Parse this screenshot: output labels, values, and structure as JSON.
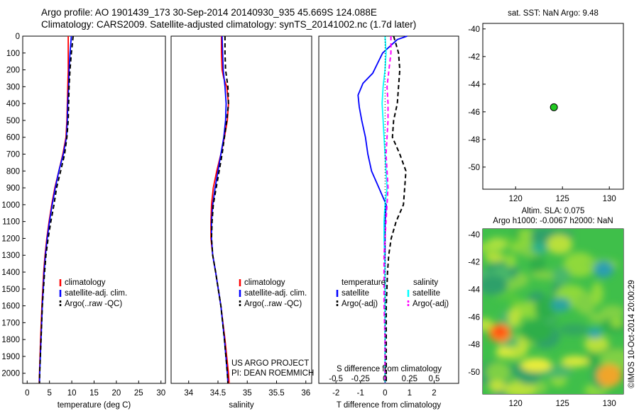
{
  "header": {
    "title_line1": "Argo profile: AO 1901439_173 30-Sep-2014 20140930_935 45.669S 124.088E",
    "title_line2": "Climatology: CARS2009. Satellite-adjusted climatology: synTS_20141002.nc (1.7d later)"
  },
  "credits": {
    "project": "US ARGO PROJECT",
    "pi": "PI: DEAN ROEMMICH",
    "imos": "©IMOS 10-Oct-2014 20:00:29"
  },
  "colors": {
    "climatology": "#ff0000",
    "satellite": "#0000ff",
    "argo": "#000000",
    "salinity_satellite": "#00ffff",
    "salinity_argo": "#ff00ff",
    "argo_dot": "#22c922"
  },
  "chart_data": [
    {
      "id": "temperature",
      "type": "line",
      "xlabel": "temperature (deg C)",
      "ylabel": "",
      "xlim": [
        -1,
        31
      ],
      "ylim": [
        2060,
        0
      ],
      "xticks": [
        0,
        5,
        10,
        15,
        20,
        25,
        30
      ],
      "yticks": [
        0,
        100,
        200,
        300,
        400,
        500,
        600,
        700,
        800,
        900,
        1000,
        1100,
        1200,
        1300,
        1400,
        1500,
        1600,
        1700,
        1800,
        1900,
        2000
      ],
      "legend": [
        "climatology",
        "satellite-adj. clim.",
        "Argo(..raw -QC)"
      ],
      "series": [
        {
          "name": "climatology",
          "style": "solid",
          "color": "#ff0000",
          "depth": [
            0,
            100,
            200,
            300,
            400,
            500,
            600,
            700,
            800,
            900,
            1000,
            1100,
            1200,
            1300,
            1400,
            1600,
            1800,
            2000,
            2060
          ],
          "values": [
            9.2,
            9.2,
            9.2,
            9.1,
            9.0,
            8.9,
            8.7,
            8.0,
            7.1,
            6.2,
            5.5,
            4.9,
            4.4,
            4.0,
            3.7,
            3.3,
            3.0,
            2.75,
            2.7
          ]
        },
        {
          "name": "satellite-adj. clim.",
          "style": "solid",
          "color": "#0000ff",
          "depth": [
            0,
            100,
            200,
            300,
            400,
            500,
            600,
            700,
            800,
            900,
            1000,
            1100,
            1200,
            1300,
            1400,
            1600,
            1800,
            2000,
            2060
          ],
          "values": [
            9.9,
            9.6,
            9.4,
            9.3,
            9.1,
            9.0,
            8.8,
            8.1,
            7.1,
            6.3,
            5.6,
            5.0,
            4.5,
            4.1,
            3.8,
            3.4,
            3.1,
            2.8,
            2.75
          ]
        },
        {
          "name": "Argo(..raw -QC)",
          "style": "dashed",
          "color": "#000000",
          "depth": [
            0,
            100,
            200,
            300,
            400,
            500,
            600,
            700,
            800,
            900,
            1000,
            1100,
            1200,
            1300,
            1400,
            1600,
            1800,
            2000,
            2060
          ],
          "values": [
            10.3,
            9.9,
            9.6,
            9.4,
            9.3,
            9.2,
            8.9,
            8.4,
            7.5,
            6.6,
            6.0,
            5.3,
            4.7,
            4.2,
            3.9,
            3.4,
            3.1,
            2.8,
            2.75
          ]
        }
      ]
    },
    {
      "id": "salinity",
      "type": "line",
      "xlabel": "salinity",
      "ylabel": "",
      "xlim": [
        33.7,
        36.1
      ],
      "ylim": [
        2060,
        0
      ],
      "xticks": [
        34,
        34.5,
        35,
        35.5,
        36
      ],
      "legend": [
        "climatology",
        "satellite-adj. clim.",
        "Argo(..raw -QC)"
      ],
      "series": [
        {
          "name": "climatology",
          "style": "solid",
          "color": "#ff0000",
          "depth": [
            0,
            100,
            200,
            250,
            300,
            400,
            500,
            600,
            700,
            800,
            900,
            1000,
            1100,
            1200,
            1300,
            1400,
            1600,
            1800,
            2000,
            2060
          ],
          "values": [
            34.56,
            34.56,
            34.57,
            34.6,
            34.65,
            34.68,
            34.66,
            34.61,
            34.55,
            34.48,
            34.42,
            34.39,
            34.38,
            34.38,
            34.41,
            34.46,
            34.55,
            34.62,
            34.68,
            34.69
          ]
        },
        {
          "name": "satellite-adj. clim.",
          "style": "solid",
          "color": "#0000ff",
          "depth": [
            0,
            100,
            200,
            300,
            400,
            500,
            600,
            700,
            800,
            900,
            1000,
            1100,
            1200,
            1300,
            1400,
            1600,
            1800,
            2000,
            2060
          ],
          "values": [
            34.57,
            34.58,
            34.59,
            34.62,
            34.64,
            34.63,
            34.6,
            34.55,
            34.5,
            34.45,
            34.41,
            34.39,
            34.39,
            34.41,
            34.46,
            34.55,
            34.61,
            34.66,
            34.67
          ]
        },
        {
          "name": "Argo(..raw -QC)",
          "style": "dashed",
          "color": "#000000",
          "depth": [
            0,
            100,
            200,
            300,
            400,
            500,
            600,
            700,
            800,
            900,
            1000,
            1100,
            1200,
            1300,
            1400,
            1600,
            1800,
            2000,
            2060
          ],
          "values": [
            34.62,
            34.62,
            34.63,
            34.67,
            34.68,
            34.65,
            34.61,
            34.57,
            34.52,
            34.47,
            34.42,
            34.4,
            34.39,
            34.41,
            34.46,
            34.55,
            34.61,
            34.66,
            34.67
          ]
        }
      ]
    },
    {
      "id": "difference",
      "type": "line",
      "xlabel": "T difference from climatology",
      "xlabel_top": "S difference from climatology",
      "ylabel": "",
      "xlim": [
        -2.7,
        3.0
      ],
      "ylim": [
        2060,
        0
      ],
      "xticks": [
        -2,
        -1,
        0,
        1,
        2
      ],
      "xticks_s": [
        -0.5,
        -0.25,
        0,
        0.25,
        0.5
      ],
      "legend_t_title": "temperature",
      "legend_s_title": "salinity",
      "legend": [
        "satellite",
        "Argo(-adj)",
        "satellite",
        "Argo(-adj)"
      ],
      "series": [
        {
          "name": "satellite",
          "variable": "temperature",
          "style": "solid",
          "color": "#0000ff",
          "depth": [
            0,
            20,
            60,
            100,
            160,
            220,
            280,
            350,
            420,
            500,
            600,
            700,
            800,
            900,
            1000,
            1100,
            1200,
            1300,
            1400,
            1600,
            1800,
            2000,
            2060
          ],
          "values": [
            0.9,
            0.5,
            0.2,
            -0.1,
            -0.3,
            -0.5,
            -0.9,
            -1.1,
            -1.05,
            -0.95,
            -0.8,
            -0.7,
            -0.55,
            -0.25,
            0.05,
            0.0,
            0.0,
            0.0,
            0.0,
            0.0,
            0.0,
            0.0,
            0.0
          ]
        },
        {
          "name": "Argo(-adj)",
          "variable": "temperature",
          "style": "dashed",
          "color": "#000000",
          "depth": [
            0,
            50,
            100,
            200,
            300,
            400,
            500,
            600,
            700,
            800,
            900,
            1000,
            1100,
            1200,
            1300,
            1400,
            1600,
            1800,
            2000,
            2060
          ],
          "values": [
            0.35,
            0.45,
            0.55,
            0.6,
            0.55,
            0.5,
            0.35,
            0.3,
            0.6,
            0.85,
            0.8,
            0.75,
            0.45,
            0.25,
            0.15,
            0.1,
            0.05,
            0.05,
            0.05,
            0.05
          ]
        },
        {
          "name": "satellite",
          "variable": "salinity",
          "style": "solid",
          "color": "#00ffff",
          "depth": [
            0,
            100,
            200,
            300,
            400,
            500,
            600,
            700,
            800,
            900,
            1000,
            1100,
            1200,
            1400,
            1600,
            1800,
            2000,
            2060
          ],
          "values": [
            0.0,
            0.01,
            0.0,
            -0.02,
            -0.03,
            -0.02,
            -0.01,
            0.0,
            0.01,
            0.02,
            0.0,
            -0.01,
            -0.01,
            0.0,
            0.0,
            0.0,
            0.0,
            0.0
          ]
        },
        {
          "name": "Argo(-adj)",
          "variable": "salinity",
          "style": "dashed",
          "color": "#ff00ff",
          "depth": [
            0,
            100,
            200,
            300,
            400,
            500,
            600,
            700,
            800,
            900,
            1000,
            1100,
            1200,
            1300,
            1400,
            1600,
            1800,
            2000,
            2060
          ],
          "values": [
            0.06,
            0.06,
            0.04,
            0.02,
            0.03,
            0.03,
            0.02,
            0.01,
            0.02,
            0.03,
            0.02,
            0.01,
            0.0,
            -0.01,
            -0.01,
            -0.01,
            0.0,
            0.0,
            0.0
          ]
        }
      ]
    },
    {
      "id": "sst_map",
      "type": "scatter",
      "title": "sat. SST: NaN Argo: 9.48",
      "xlim": [
        116.5,
        131.5
      ],
      "ylim": [
        -51.6,
        -39.6
      ],
      "xticks": [
        120,
        125,
        130
      ],
      "yticks": [
        -40,
        -42,
        -44,
        -46,
        -48,
        -50
      ],
      "points": [
        {
          "x": 124.088,
          "y": -45.669
        }
      ]
    },
    {
      "id": "sla_map",
      "type": "heatmap",
      "title_line1": "Altim. SLA: 0.075",
      "title_line2": "Argo h1000: -0.0067 h2000: NaN",
      "xlim": [
        116.5,
        131.5
      ],
      "ylim": [
        -51.6,
        -39.6
      ],
      "xticks": [
        120,
        125,
        130
      ],
      "yticks": [
        -40,
        -42,
        -44,
        -46,
        -48,
        -50
      ],
      "points": [
        {
          "x": 124.088,
          "y": -45.669
        }
      ]
    }
  ]
}
